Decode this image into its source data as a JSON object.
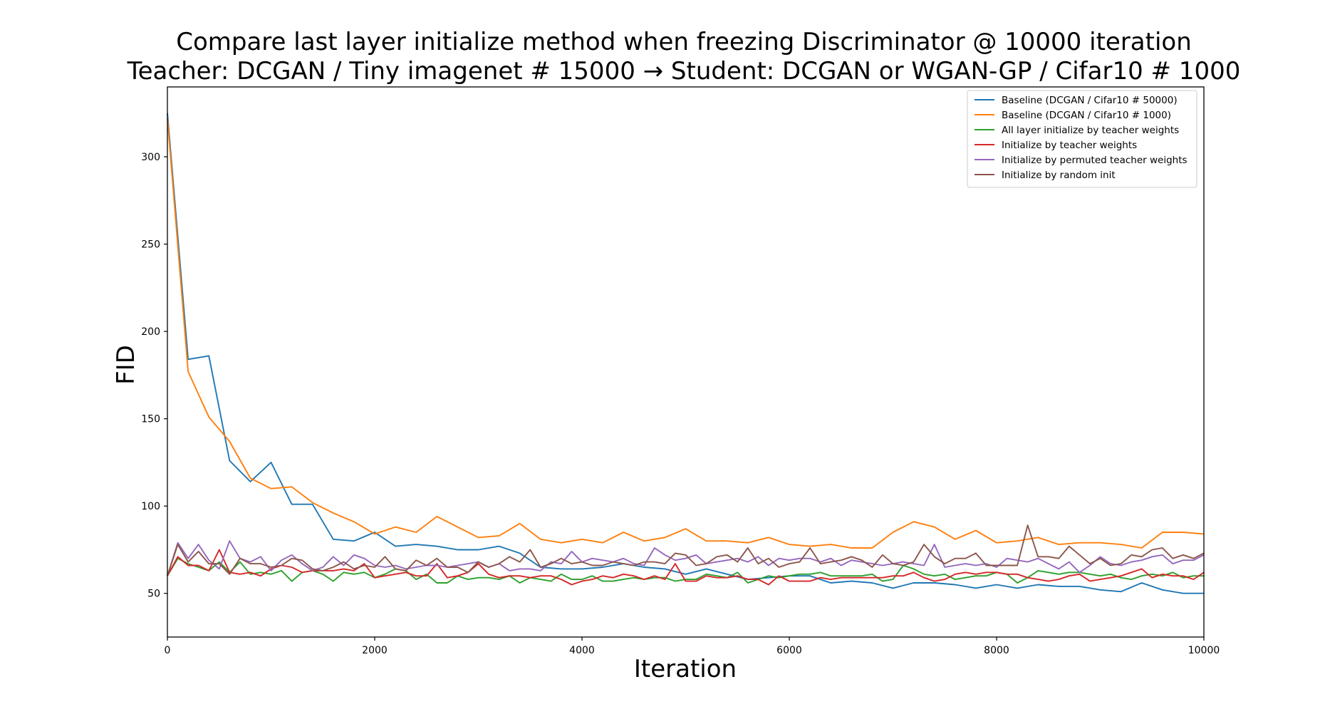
{
  "chart_data": {
    "type": "line",
    "title": "Compare last layer initialize method when freezing Discriminator @ 10000 iteration",
    "subtitle": "Teacher: DCGAN / Tiny imagenet # 15000 → Student: DCGAN or WGAN-GP / Cifar10 # 1000",
    "xlabel": "Iteration",
    "ylabel": "FID",
    "xlim": [
      0,
      10000
    ],
    "ylim": [
      25,
      340
    ],
    "xticks": [
      0,
      2000,
      4000,
      6000,
      8000,
      10000
    ],
    "yticks": [
      50,
      100,
      150,
      200,
      250,
      300
    ],
    "grid": false,
    "legend_position": "top-right",
    "series": [
      {
        "name": "Baseline (DCGAN  / Cifar10 # 50000)",
        "color": "#1f77b4",
        "x": [
          0,
          200,
          400,
          600,
          800,
          1000,
          1200,
          1400,
          1600,
          1800,
          2000,
          2200,
          2400,
          2600,
          2800,
          3000,
          3200,
          3400,
          3600,
          3800,
          4000,
          4200,
          4400,
          4600,
          4800,
          5000,
          5200,
          5400,
          5600,
          5800,
          6000,
          6200,
          6400,
          6600,
          6800,
          7000,
          7200,
          7400,
          7600,
          7800,
          8000,
          8200,
          8400,
          8600,
          8800,
          9000,
          9200,
          9400,
          9600,
          9800,
          10000
        ],
        "y": [
          325,
          184,
          186,
          126,
          114,
          125,
          101,
          101,
          81,
          80,
          85,
          77,
          78,
          77,
          75,
          75,
          77,
          73,
          65,
          64,
          64,
          65,
          67,
          65,
          64,
          61,
          64,
          61,
          58,
          59,
          60,
          60,
          56,
          57,
          56,
          53,
          56,
          56,
          55,
          53,
          55,
          53,
          55,
          54,
          54,
          52,
          51,
          56,
          52,
          50,
          50
        ]
      },
      {
        "name": "Baseline (DCGAN  / Cifar10 # 1000)",
        "color": "#ff7f0e",
        "x": [
          0,
          200,
          400,
          600,
          800,
          1000,
          1200,
          1400,
          1600,
          1800,
          2000,
          2200,
          2400,
          2600,
          2800,
          3000,
          3200,
          3400,
          3600,
          3800,
          4000,
          4200,
          4400,
          4600,
          4800,
          5000,
          5200,
          5400,
          5600,
          5800,
          6000,
          6200,
          6400,
          6600,
          6800,
          7000,
          7200,
          7400,
          7600,
          7800,
          8000,
          8200,
          8400,
          8600,
          8800,
          9000,
          9200,
          9400,
          9600,
          9800,
          10000
        ],
        "y": [
          322,
          177,
          151,
          137,
          116,
          110,
          111,
          102,
          96,
          91,
          84,
          88,
          85,
          94,
          88,
          82,
          83,
          90,
          81,
          79,
          81,
          79,
          85,
          80,
          82,
          87,
          80,
          80,
          79,
          82,
          78,
          77,
          78,
          76,
          76,
          85,
          91,
          88,
          81,
          86,
          79,
          80,
          82,
          78,
          79,
          79,
          78,
          76,
          85,
          85,
          84
        ]
      },
      {
        "name": "All layer initialize by teacher weights",
        "color": "#2ca02c",
        "x": [
          0,
          100,
          200,
          300,
          400,
          500,
          600,
          700,
          800,
          900,
          1000,
          1100,
          1200,
          1300,
          1400,
          1500,
          1600,
          1700,
          1800,
          1900,
          2000,
          2100,
          2200,
          2300,
          2400,
          2500,
          2600,
          2700,
          2800,
          2900,
          3000,
          3100,
          3200,
          3300,
          3400,
          3500,
          3600,
          3700,
          3800,
          3900,
          4000,
          4100,
          4200,
          4300,
          4400,
          4500,
          4600,
          4700,
          4800,
          4900,
          5000,
          5100,
          5200,
          5300,
          5400,
          5500,
          5600,
          5700,
          5800,
          5900,
          6000,
          6100,
          6200,
          6300,
          6400,
          6500,
          6600,
          6700,
          6800,
          6900,
          7000,
          7100,
          7200,
          7300,
          7400,
          7500,
          7600,
          7700,
          7800,
          7900,
          8000,
          8100,
          8200,
          8300,
          8400,
          8500,
          8600,
          8700,
          8800,
          8900,
          9000,
          9100,
          9200,
          9300,
          9400,
          9500,
          9600,
          9700,
          9800,
          9900,
          10000
        ],
        "y": [
          60,
          70,
          67,
          65,
          63,
          68,
          62,
          68,
          61,
          62,
          61,
          63,
          57,
          62,
          63,
          61,
          57,
          62,
          61,
          62,
          59,
          61,
          64,
          63,
          58,
          61,
          56,
          56,
          60,
          58,
          59,
          59,
          58,
          60,
          56,
          59,
          58,
          57,
          61,
          58,
          58,
          60,
          57,
          57,
          58,
          59,
          58,
          59,
          59,
          57,
          58,
          58,
          61,
          60,
          59,
          62,
          56,
          58,
          60,
          59,
          60,
          61,
          61,
          62,
          60,
          60,
          60,
          60,
          61,
          57,
          58,
          66,
          64,
          61,
          60,
          61,
          58,
          59,
          60,
          60,
          62,
          61,
          56,
          59,
          63,
          62,
          61,
          62,
          62,
          61,
          60,
          61,
          59,
          58,
          60,
          61,
          60,
          62,
          59,
          60,
          60
        ]
      },
      {
        "name": "Initialize by teacher weights",
        "color": "#d62728",
        "x": [
          0,
          100,
          200,
          300,
          400,
          500,
          600,
          700,
          800,
          900,
          1000,
          1100,
          1200,
          1300,
          1400,
          1500,
          1600,
          1700,
          1800,
          1900,
          2000,
          2100,
          2200,
          2300,
          2400,
          2500,
          2600,
          2700,
          2800,
          2900,
          3000,
          3100,
          3200,
          3300,
          3400,
          3500,
          3600,
          3700,
          3800,
          3900,
          4000,
          4100,
          4200,
          4300,
          4400,
          4500,
          4600,
          4700,
          4800,
          4900,
          5000,
          5100,
          5200,
          5300,
          5400,
          5500,
          5600,
          5700,
          5800,
          5900,
          6000,
          6100,
          6200,
          6300,
          6400,
          6500,
          6600,
          6700,
          6800,
          6900,
          7000,
          7100,
          7200,
          7300,
          7400,
          7500,
          7600,
          7700,
          7800,
          7900,
          8000,
          8100,
          8200,
          8300,
          8400,
          8500,
          8600,
          8700,
          8800,
          8900,
          9000,
          9100,
          9200,
          9300,
          9400,
          9500,
          9600,
          9700,
          9800,
          9900,
          10000
        ],
        "y": [
          60,
          71,
          66,
          66,
          63,
          75,
          62,
          61,
          62,
          60,
          64,
          66,
          65,
          62,
          63,
          63,
          63,
          64,
          63,
          67,
          59,
          60,
          61,
          62,
          60,
          60,
          67,
          59,
          60,
          62,
          67,
          61,
          59,
          60,
          60,
          59,
          60,
          60,
          58,
          55,
          57,
          58,
          60,
          59,
          61,
          60,
          58,
          60,
          58,
          67,
          57,
          57,
          60,
          59,
          59,
          60,
          58,
          58,
          55,
          60,
          57,
          57,
          57,
          59,
          58,
          59,
          59,
          59,
          59,
          59,
          60,
          60,
          62,
          59,
          57,
          58,
          61,
          62,
          61,
          62,
          62,
          61,
          61,
          59,
          58,
          57,
          58,
          60,
          61,
          57,
          58,
          59,
          60,
          62,
          64,
          59,
          61,
          60,
          60,
          58,
          62
        ]
      },
      {
        "name": "Initialize by permuted teacher weights",
        "color": "#9467bd",
        "x": [
          0,
          100,
          200,
          300,
          400,
          500,
          600,
          700,
          800,
          900,
          1000,
          1100,
          1200,
          1300,
          1400,
          1500,
          1600,
          1700,
          1800,
          1900,
          2000,
          2100,
          2200,
          2300,
          2400,
          2500,
          2600,
          2700,
          2800,
          2900,
          3000,
          3100,
          3200,
          3300,
          3400,
          3500,
          3600,
          3700,
          3800,
          3900,
          4000,
          4100,
          4200,
          4300,
          4400,
          4500,
          4600,
          4700,
          4800,
          4900,
          5000,
          5100,
          5200,
          5300,
          5400,
          5500,
          5600,
          5700,
          5800,
          5900,
          6000,
          6100,
          6200,
          6300,
          6400,
          6500,
          6600,
          6700,
          6800,
          6900,
          7000,
          7100,
          7200,
          7300,
          7400,
          7500,
          7600,
          7700,
          7800,
          7900,
          8000,
          8100,
          8200,
          8300,
          8400,
          8500,
          8600,
          8700,
          8800,
          8900,
          9000,
          9100,
          9200,
          9300,
          9400,
          9500,
          9600,
          9700,
          9800,
          9900,
          10000
        ],
        "y": [
          60,
          79,
          70,
          78,
          69,
          64,
          80,
          70,
          68,
          71,
          63,
          69,
          72,
          67,
          63,
          65,
          71,
          66,
          72,
          70,
          66,
          65,
          66,
          64,
          65,
          66,
          66,
          65,
          66,
          67,
          68,
          65,
          67,
          63,
          64,
          64,
          63,
          68,
          67,
          74,
          68,
          70,
          69,
          68,
          70,
          67,
          66,
          76,
          72,
          69,
          70,
          72,
          67,
          68,
          69,
          70,
          68,
          71,
          66,
          70,
          69,
          70,
          70,
          68,
          70,
          66,
          69,
          68,
          67,
          66,
          67,
          68,
          67,
          66,
          78,
          65,
          66,
          67,
          66,
          67,
          65,
          70,
          69,
          68,
          70,
          67,
          64,
          68,
          62,
          66,
          71,
          67,
          66,
          68,
          69,
          71,
          72,
          67,
          69,
          69,
          72
        ]
      },
      {
        "name": "Initialize by random init",
        "color": "#8c564b",
        "x": [
          0,
          100,
          200,
          300,
          400,
          500,
          600,
          700,
          800,
          900,
          1000,
          1100,
          1200,
          1300,
          1400,
          1500,
          1600,
          1700,
          1800,
          1900,
          2000,
          2100,
          2200,
          2300,
          2400,
          2500,
          2600,
          2700,
          2800,
          2900,
          3000,
          3100,
          3200,
          3300,
          3400,
          3500,
          3600,
          3700,
          3800,
          3900,
          4000,
          4100,
          4200,
          4300,
          4400,
          4500,
          4600,
          4700,
          4800,
          4900,
          5000,
          5100,
          5200,
          5300,
          5400,
          5500,
          5600,
          5700,
          5800,
          5900,
          6000,
          6100,
          6200,
          6300,
          6400,
          6500,
          6600,
          6700,
          6800,
          6900,
          7000,
          7100,
          7200,
          7300,
          7400,
          7500,
          7600,
          7700,
          7800,
          7900,
          8000,
          8100,
          8200,
          8300,
          8400,
          8500,
          8600,
          8700,
          8800,
          8900,
          9000,
          9100,
          9200,
          9300,
          9400,
          9500,
          9600,
          9700,
          9800,
          9900,
          10000
        ],
        "y": [
          60,
          78,
          68,
          74,
          67,
          67,
          61,
          70,
          67,
          67,
          65,
          66,
          70,
          69,
          64,
          63,
          65,
          68,
          64,
          66,
          65,
          71,
          64,
          63,
          69,
          66,
          70,
          65,
          65,
          62,
          68,
          65,
          67,
          71,
          68,
          75,
          65,
          67,
          70,
          67,
          68,
          66,
          66,
          68,
          67,
          66,
          68,
          68,
          67,
          73,
          72,
          66,
          67,
          71,
          72,
          68,
          76,
          67,
          70,
          65,
          67,
          68,
          76,
          67,
          68,
          69,
          71,
          69,
          65,
          72,
          67,
          66,
          68,
          78,
          71,
          67,
          70,
          70,
          73,
          66,
          66,
          66,
          66,
          89,
          71,
          71,
          70,
          77,
          72,
          67,
          70,
          66,
          67,
          72,
          71,
          75,
          76,
          70,
          72,
          70,
          73
        ]
      }
    ]
  }
}
